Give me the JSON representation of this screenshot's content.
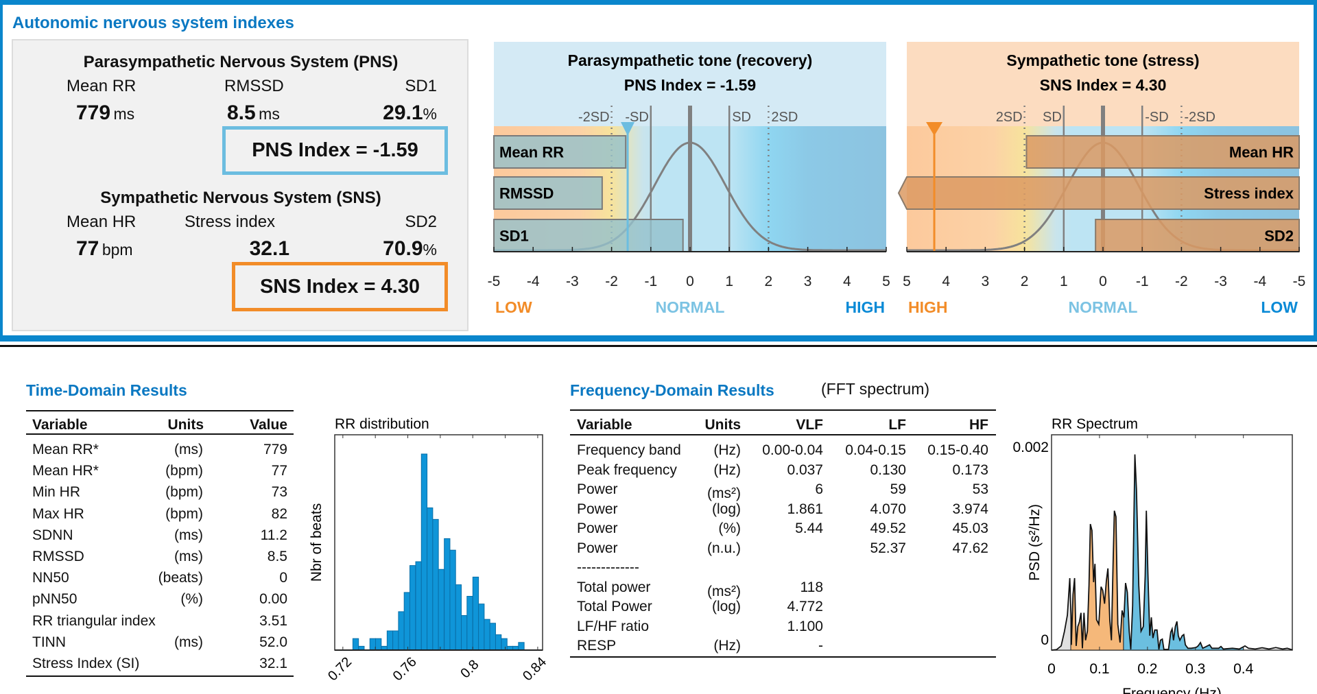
{
  "header": {
    "title": "Autonomic nervous system indexes"
  },
  "colors": {
    "brand_blue": "#0a86cc",
    "pns_accent": "#6cbde0",
    "sns_accent": "#f28c28",
    "low_orange": "#f28c28",
    "normal_blue": "#7cc3e3",
    "high_blue": "#0a8ad6"
  },
  "summary": {
    "pns": {
      "title": "Parasympathetic Nervous System (PNS)",
      "labels": [
        "Mean RR",
        "RMSSD",
        "SD1"
      ],
      "values": [
        {
          "value": "779",
          "unit": "ms"
        },
        {
          "value": "8.5",
          "unit": "ms"
        },
        {
          "value": "29.1",
          "unit": "%"
        }
      ],
      "index_text": "PNS Index = -1.59"
    },
    "sns": {
      "title": "Sympathetic Nervous System (SNS)",
      "labels": [
        "Mean HR",
        "Stress index",
        "SD2"
      ],
      "values": [
        {
          "value": "77",
          "unit": "bpm"
        },
        {
          "value": "32.1",
          "unit": ""
        },
        {
          "value": "70.9",
          "unit": "%"
        }
      ],
      "index_text": "SNS Index = 4.30"
    }
  },
  "gauges": [
    {
      "title": "Parasympathetic tone (recovery)",
      "subtitle": "PNS Index = -1.59",
      "index": -1.59,
      "reversed": false,
      "top_bg": "#d4eaf5",
      "marker_color": "#6cbde0",
      "bar_fill": "#93c0cc",
      "bar_anchor": "left",
      "sd_labels": [
        {
          "at": -2,
          "text": "-2SD"
        },
        {
          "at": -1,
          "text": "-SD"
        },
        {
          "at": 1,
          "text": "SD"
        },
        {
          "at": 2,
          "text": "2SD"
        }
      ],
      "bars": [
        {
          "label": "Mean RR",
          "z": -1.64
        },
        {
          "label": "RMSSD",
          "z": -2.24
        },
        {
          "label": "SD1",
          "z": -0.18
        }
      ],
      "ticks": [
        "-5",
        "-4",
        "-3",
        "-2",
        "-1",
        "0",
        "1",
        "2",
        "3",
        "4",
        "5"
      ],
      "zones": [
        {
          "text": "LOW",
          "color": "#f28c28"
        },
        {
          "text": "NORMAL",
          "color": "#7cc3e3"
        },
        {
          "text": "HIGH",
          "color": "#0a8ad6"
        }
      ]
    },
    {
      "title": "Sympathetic tone (stress)",
      "subtitle": "SNS Index = 4.30",
      "index": 4.3,
      "reversed": true,
      "top_bg": "#fcdcc0",
      "marker_color": "#f28c28",
      "bar_fill": "#dc9a63",
      "bar_anchor": "right",
      "sd_labels": [
        {
          "at": 2,
          "text": "2SD"
        },
        {
          "at": 1,
          "text": "SD"
        },
        {
          "at": -1,
          "text": "-SD"
        },
        {
          "at": -2,
          "text": "-2SD"
        }
      ],
      "bars": [
        {
          "label": "Mean HR",
          "z": 1.95
        },
        {
          "label": "Stress index",
          "z": 5.3
        },
        {
          "label": "SD2",
          "z": 0.19
        }
      ],
      "ticks": [
        "5",
        "4",
        "3",
        "2",
        "1",
        "0",
        "-1",
        "-2",
        "-3",
        "-4",
        "-5"
      ],
      "zones": [
        {
          "text": "HIGH",
          "color": "#f28c28"
        },
        {
          "text": "NORMAL",
          "color": "#7cc3e3"
        },
        {
          "text": "LOW",
          "color": "#0a8ad6"
        }
      ]
    }
  ],
  "time_domain": {
    "title": "Time-Domain Results",
    "columns": [
      "Variable",
      "Units",
      "Value"
    ],
    "rows": [
      [
        "Mean RR*",
        "(ms)",
        "779"
      ],
      [
        "Mean HR*",
        "(bpm)",
        "77"
      ],
      [
        "Min HR",
        "(bpm)",
        "73"
      ],
      [
        "Max HR",
        "(bpm)",
        "82"
      ],
      [
        "SDNN",
        "(ms)",
        "11.2"
      ],
      [
        "RMSSD",
        "(ms)",
        "8.5"
      ],
      [
        "NN50",
        "(beats)",
        "0"
      ],
      [
        "pNN50",
        "(%)",
        "0.00"
      ],
      [
        "RR triangular index",
        "",
        "3.51"
      ],
      [
        "TINN",
        "(ms)",
        "52.0"
      ],
      [
        "Stress Index (SI)",
        "",
        "32.1"
      ]
    ]
  },
  "frequency_domain": {
    "title": "Frequency-Domain Results",
    "subtitle": "(FFT spectrum)",
    "columns": [
      "Variable",
      "Units",
      "VLF",
      "LF",
      "HF"
    ],
    "rows": [
      [
        "Frequency band",
        "(Hz)",
        "0.00-0.04",
        "0.04-0.15",
        "0.15-0.40"
      ],
      [
        "Peak frequency",
        "(Hz)",
        "0.037",
        "0.130",
        "0.173"
      ],
      [
        "Power",
        "(ms²)",
        "6",
        "59",
        "53"
      ],
      [
        "Power",
        "(log)",
        "1.861",
        "4.070",
        "3.974"
      ],
      [
        "Power",
        "(%)",
        "5.44",
        "49.52",
        "45.03"
      ],
      [
        "Power",
        "(n.u.)",
        "",
        "52.37",
        "47.62"
      ],
      [
        "-------------",
        "",
        "",
        "",
        ""
      ],
      [
        "Total power",
        "(ms²)",
        "118",
        "",
        ""
      ],
      [
        "Total Power",
        "(log)",
        "4.772",
        "",
        ""
      ],
      [
        "LF/HF ratio",
        "",
        "1.100",
        "",
        ""
      ],
      [
        "RESP",
        "(Hz)",
        "-",
        "",
        ""
      ]
    ]
  },
  "chart_data": [
    {
      "type": "bar",
      "title": "RR distribution",
      "xlabel": "",
      "ylabel": "Nbr of beats",
      "xlim": [
        0.715,
        0.843
      ],
      "ylim": [
        0,
        56
      ],
      "xticks": [
        "0.72",
        "0.74",
        "0.76",
        "0.78",
        "0.8",
        "0.82",
        "0.84"
      ],
      "xtick_labels": [
        "0.72",
        "0.76",
        "0.8",
        "0.84"
      ],
      "bin_width": 0.0035,
      "bin_centers": [
        0.7279,
        0.7314,
        0.7349,
        0.7384,
        0.7419,
        0.7455,
        0.749,
        0.7525,
        0.756,
        0.7595,
        0.763,
        0.7666,
        0.7701,
        0.7736,
        0.7771,
        0.7806,
        0.7842,
        0.7877,
        0.7912,
        0.7947,
        0.7982,
        0.8018,
        0.8053,
        0.8088,
        0.8123,
        0.8158,
        0.8194,
        0.8229,
        0.8264,
        0.8299
      ],
      "values": [
        3,
        1,
        0,
        3,
        3,
        1,
        5,
        5,
        10,
        15,
        22,
        23,
        51,
        37,
        34,
        21,
        29,
        26,
        17,
        9,
        14,
        19,
        12,
        8,
        7,
        4,
        3,
        1,
        1,
        2
      ],
      "color": "#0f95d8"
    },
    {
      "type": "area",
      "title": "RR Spectrum",
      "xlabel": "Frequency (Hz)",
      "ylabel": "PSD (s²/Hz)",
      "xlim": [
        0,
        0.502
      ],
      "ylim": [
        0,
        0.00212
      ],
      "xticks": [
        "0",
        "0.1",
        "0.2",
        "0.3",
        "0.4"
      ],
      "yticks": [
        "0",
        "0.002"
      ],
      "bands": [
        {
          "name": "VLF",
          "range": [
            0,
            0.04
          ],
          "color": "#e0e0e0"
        },
        {
          "name": "LF",
          "range": [
            0.04,
            0.15
          ],
          "color": "#f5b87a"
        },
        {
          "name": "HF",
          "range": [
            0.15,
            0.4
          ],
          "color": "#6bbfe0"
        }
      ],
      "freq": [
        0,
        0.0105,
        0.02,
        0.027,
        0.033,
        0.038,
        0.0405,
        0.0414,
        0.0448,
        0.0481,
        0.0514,
        0.0548,
        0.0581,
        0.0614,
        0.0643,
        0.0676,
        0.071,
        0.0748,
        0.0781,
        0.081,
        0.0843,
        0.0876,
        0.0905,
        0.0938,
        0.0986,
        0.1033,
        0.1067,
        0.1105,
        0.1143,
        0.1176,
        0.1214,
        0.1248,
        0.1281,
        0.131,
        0.1343,
        0.1381,
        0.1429,
        0.1471,
        0.151,
        0.1543,
        0.1581,
        0.1619,
        0.1652,
        0.169,
        0.1738,
        0.1771,
        0.1819,
        0.1867,
        0.1914,
        0.1952,
        0.1976,
        0.201,
        0.2048,
        0.2081,
        0.2114,
        0.2152,
        0.22,
        0.2238,
        0.2271,
        0.231,
        0.2343,
        0.2438,
        0.2486,
        0.2514,
        0.2543,
        0.2581,
        0.2614,
        0.2643,
        0.2676,
        0.2724,
        0.2757,
        0.279,
        0.2843,
        0.2914,
        0.301,
        0.3057,
        0.3105,
        0.3152,
        0.32,
        0.3295,
        0.3343,
        0.3486,
        0.3533,
        0.3581,
        0.3771,
        0.3914,
        0.4033,
        0.4105,
        0.4248,
        0.439,
        0.4533,
        0.4676,
        0.4819,
        0.4914,
        0.5024
      ],
      "psd": [
        0,
        5e-06,
        4.1e-05,
        0.000187,
        0.000345,
        0.000709,
        0.000345,
        5.2e-05,
        0.000547,
        0.000709,
        4.1e-05,
        0.000232,
        0.000277,
        0.000367,
        1.8e-05,
        0.000367,
        9.7e-05,
        0.000187,
        0.000637,
        0.001241,
        0.001178,
        0.000669,
        0.000849,
        0.0003,
        0.000255,
        0.000624,
        0.000588,
        0.000457,
        0.000682,
        0.000804,
        0.0003,
        9.7e-05,
        0.000818,
        0.001372,
        0.001313,
        0.000255,
        7.4e-05,
        0.00039,
        0.000322,
        0.00066,
        0.00057,
        0.000187,
        7e-06,
        0.000435,
        0.001926,
        0.001583,
        0.000637,
        0.000187,
        0.000232,
        0.000727,
        0.001372,
        0.00075,
        0.000142,
        0.000322,
        0.000119,
        0.000198,
        0.000198,
        7e-06,
        9.7e-05,
        0.000108,
        7e-06,
        7e-06,
        0.000176,
        0.000209,
        9.7e-05,
        0.000232,
        0.000282,
        0.000142,
        9.7e-05,
        0.000142,
        0.000153,
        5.2e-05,
        1.8e-05,
        1.8e-05,
        2.5e-05,
        4.1e-05,
        7.4e-05,
        1.8e-05,
        2.9e-05,
        5.2e-05,
        1.8e-05,
        1.8e-05,
        3.6e-05,
        1.1e-05,
        1.8e-05,
        1.1e-05,
        4.1e-05,
        1.8e-05,
        1.1e-05,
        2.3e-05,
        1.1e-05,
        2.5e-05,
        1.1e-05,
        1.8e-05,
        2e-06
      ]
    }
  ]
}
